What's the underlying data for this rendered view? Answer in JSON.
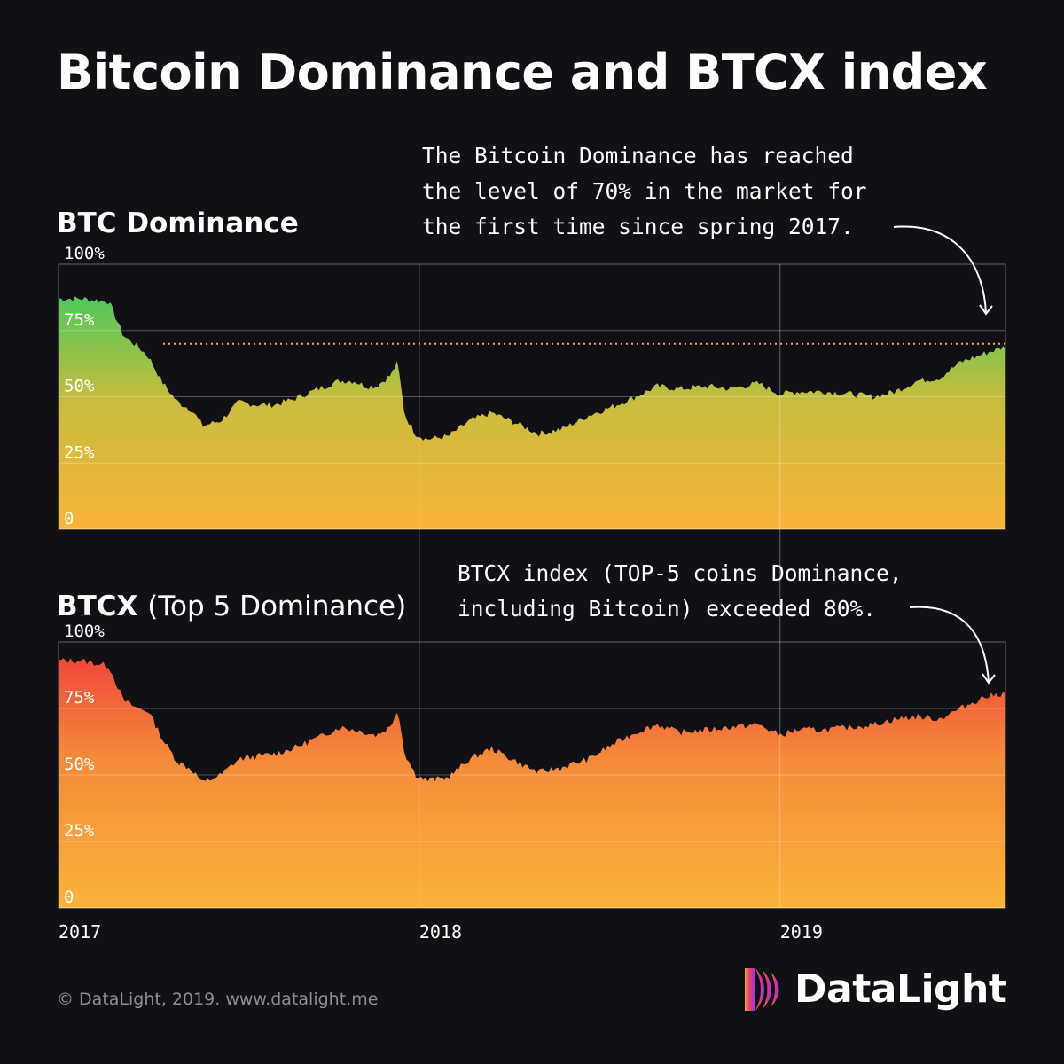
{
  "title": "Bitcoin Dominance and BTCX index",
  "charts": {
    "btc": {
      "title": "BTC Dominance",
      "annotation": [
        "The Bitcoin Dominance has reached",
        "the level of 70% in the market for",
        "the first time since spring 2017."
      ]
    },
    "btcx": {
      "title_bold": "BTCX",
      "title_rest": "(Top 5 Dominance)",
      "annotation": [
        "BTCX index (TOP-5 coins Dominance,",
        "including Bitcoin) exceeded 80%."
      ]
    }
  },
  "footer": "© DataLight, 2019. www.datalight.me",
  "logo": "DataLight",
  "colors": {
    "background": "#111115",
    "btc_top": "#4fc85a",
    "btc_mid": "#c8bd3e",
    "btc_bottom": "#fbb43a",
    "btcx_top": "#f0483a",
    "btcx_mid": "#f48a3a",
    "btcx_bottom": "#fbb43a",
    "threshold_line": "#f0b429"
  },
  "chart_data": [
    {
      "type": "area",
      "title": "BTC Dominance",
      "x_ticks": [
        "2017",
        "2018",
        "2019"
      ],
      "y_ticks": [
        "0",
        "25%",
        "50%",
        "75%",
        "100%"
      ],
      "ylim": [
        0,
        100
      ],
      "xlim": [
        2017.0,
        2019.625
      ],
      "grid": true,
      "threshold_line": 70,
      "series": [
        {
          "x": [
            2017.0,
            2017.06,
            2017.14,
            2017.18,
            2017.22,
            2017.25,
            2017.29,
            2017.33,
            2017.37,
            2017.4,
            2017.45,
            2017.5,
            2017.55,
            2017.6,
            2017.65,
            2017.72,
            2017.78,
            2017.82,
            2017.85,
            2017.88,
            2017.92,
            2017.94,
            2017.96,
            2017.99,
            2018.02,
            2018.08,
            2018.14,
            2018.2,
            2018.27,
            2018.33,
            2018.4,
            2018.47,
            2018.53,
            2018.6,
            2018.66,
            2018.72,
            2018.8,
            2018.86,
            2018.94,
            2019.0,
            2019.05,
            2019.12,
            2019.2,
            2019.26,
            2019.32,
            2019.38,
            2019.44,
            2019.5,
            2019.56,
            2019.625
          ],
          "values": [
            87,
            87,
            86,
            73,
            69,
            65,
            55,
            48,
            45,
            39,
            41,
            48,
            47,
            47,
            49,
            53,
            56,
            56,
            54,
            54,
            58,
            63,
            43,
            36,
            34,
            35,
            41,
            44,
            40,
            36,
            38,
            43,
            46,
            50,
            54,
            53,
            54,
            53,
            55,
            51,
            52,
            52,
            51,
            50,
            52,
            56,
            57,
            63,
            66,
            69
          ]
        }
      ]
    },
    {
      "type": "area",
      "title": "BTCX (Top 5 Dominance)",
      "x_ticks": [
        "2017",
        "2018",
        "2019"
      ],
      "y_ticks": [
        "0",
        "25%",
        "50%",
        "75%",
        "100%"
      ],
      "ylim": [
        0,
        100
      ],
      "xlim": [
        2017.0,
        2019.625
      ],
      "grid": true,
      "series": [
        {
          "x": [
            2017.0,
            2017.06,
            2017.14,
            2017.18,
            2017.22,
            2017.25,
            2017.29,
            2017.33,
            2017.37,
            2017.4,
            2017.45,
            2017.5,
            2017.55,
            2017.6,
            2017.65,
            2017.72,
            2017.78,
            2017.82,
            2017.85,
            2017.88,
            2017.92,
            2017.94,
            2017.96,
            2017.99,
            2018.02,
            2018.08,
            2018.14,
            2018.2,
            2018.27,
            2018.33,
            2018.4,
            2018.47,
            2018.53,
            2018.6,
            2018.66,
            2018.72,
            2018.8,
            2018.86,
            2018.94,
            2019.0,
            2019.05,
            2019.12,
            2019.2,
            2019.26,
            2019.32,
            2019.38,
            2019.44,
            2019.5,
            2019.56,
            2019.625
          ],
          "values": [
            93,
            93,
            91,
            78,
            75,
            74,
            63,
            55,
            52,
            47,
            50,
            56,
            57,
            58,
            60,
            64,
            68,
            67,
            66,
            65,
            68,
            75,
            58,
            50,
            48,
            49,
            56,
            60,
            55,
            51,
            53,
            56,
            61,
            66,
            69,
            66,
            67,
            68,
            69,
            65,
            67,
            67,
            68,
            69,
            71,
            72,
            71,
            75,
            79,
            81
          ]
        }
      ]
    }
  ]
}
